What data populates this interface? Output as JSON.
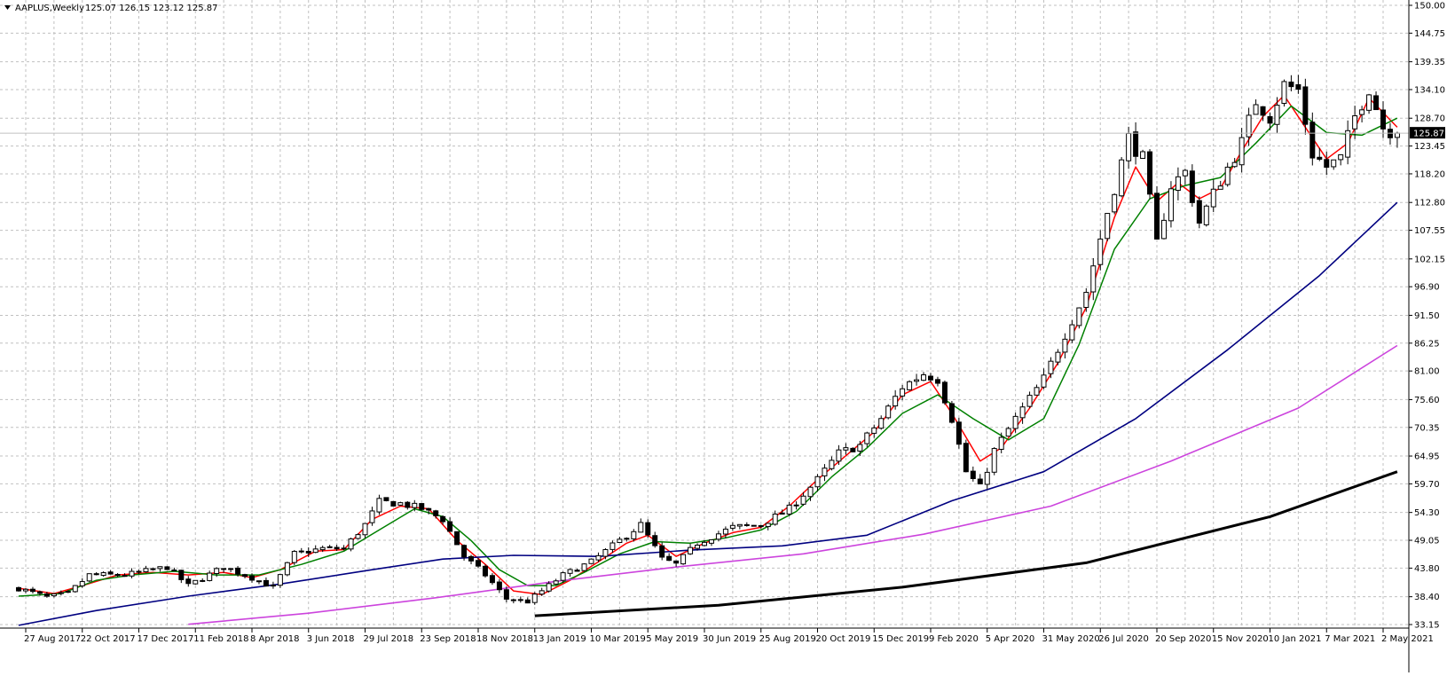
{
  "chart_data": {
    "type": "candlestick",
    "symbol": "AAPLUS,Weekly",
    "ohlc_text": "125.07 126.15 123.12 125.87",
    "last_price": 125.87,
    "last_price_label": "125.87",
    "ylim": [
      33.15,
      150.0
    ],
    "y_ticks": [
      "150.00",
      "144.75",
      "139.35",
      "134.10",
      "128.70",
      "123.45",
      "118.20",
      "112.80",
      "107.55",
      "102.15",
      "96.90",
      "91.50",
      "86.25",
      "81.00",
      "75.60",
      "70.35",
      "64.95",
      "59.70",
      "54.30",
      "49.05",
      "43.80",
      "38.40",
      "33.15"
    ],
    "x_ticks": [
      {
        "label": "27 Aug 2017",
        "date": "2017-08-27"
      },
      {
        "label": "22 Oct 2017",
        "date": "2017-10-22"
      },
      {
        "label": "17 Dec 2017",
        "date": "2017-12-17"
      },
      {
        "label": "11 Feb 2018",
        "date": "2018-02-11"
      },
      {
        "label": "8 Apr 2018",
        "date": "2018-04-08"
      },
      {
        "label": "3 Jun 2018",
        "date": "2018-06-03"
      },
      {
        "label": "29 Jul 2018",
        "date": "2018-07-29"
      },
      {
        "label": "23 Sep 2018",
        "date": "2018-09-23"
      },
      {
        "label": "18 Nov 2018",
        "date": "2018-11-18"
      },
      {
        "label": "13 Jan 2019",
        "date": "2019-01-13"
      },
      {
        "label": "10 Mar 2019",
        "date": "2019-03-10"
      },
      {
        "label": "5 May 2019",
        "date": "2019-05-05"
      },
      {
        "label": "30 Jun 2019",
        "date": "2019-06-30"
      },
      {
        "label": "25 Aug 2019",
        "date": "2019-08-25"
      },
      {
        "label": "20 Oct 2019",
        "date": "2019-10-20"
      },
      {
        "label": "15 Dec 2019",
        "date": "2019-12-15"
      },
      {
        "label": "9 Feb 2020",
        "date": "2020-02-09"
      },
      {
        "label": "5 Apr 2020",
        "date": "2020-04-05"
      },
      {
        "label": "31 May 2020",
        "date": "2020-05-31"
      },
      {
        "label": "26 Jul 2020",
        "date": "2020-07-26"
      },
      {
        "label": "20 Sep 2020",
        "date": "2020-09-20"
      },
      {
        "label": "15 Nov 2020",
        "date": "2020-11-15"
      },
      {
        "label": "10 Jan 2021",
        "date": "2021-01-10"
      },
      {
        "label": "7 Mar 2021",
        "date": "2021-03-07"
      },
      {
        "label": "2 May 2021",
        "date": "2021-05-02"
      }
    ],
    "grid": true,
    "colors": {
      "up_candle_fill": "#ffffff",
      "down_candle_fill": "#000000",
      "candle_outline": "#000000",
      "grid": "#c0c0c0",
      "last_price_line": "#c0c0c0",
      "last_price_box": "#000000"
    },
    "close_path": [
      {
        "date": "2017-08-20",
        "price": 40.0
      },
      {
        "date": "2017-09-17",
        "price": 38.3
      },
      {
        "date": "2017-10-08",
        "price": 39.0
      },
      {
        "date": "2017-10-29",
        "price": 42.5
      },
      {
        "date": "2017-12-03",
        "price": 42.5
      },
      {
        "date": "2018-01-14",
        "price": 44.0
      },
      {
        "date": "2018-02-04",
        "price": 40.5
      },
      {
        "date": "2018-03-11",
        "price": 44.0
      },
      {
        "date": "2018-04-08",
        "price": 42.0
      },
      {
        "date": "2018-04-29",
        "price": 40.2
      },
      {
        "date": "2018-05-20",
        "price": 46.5
      },
      {
        "date": "2018-06-17",
        "price": 47.5
      },
      {
        "date": "2018-07-08",
        "price": 47.5
      },
      {
        "date": "2018-07-29",
        "price": 52.0
      },
      {
        "date": "2018-08-12",
        "price": 56.3
      },
      {
        "date": "2018-09-02",
        "price": 56.0
      },
      {
        "date": "2018-09-23",
        "price": 55.0
      },
      {
        "date": "2018-10-14",
        "price": 53.0
      },
      {
        "date": "2018-11-04",
        "price": 46.0
      },
      {
        "date": "2018-11-25",
        "price": 42.5
      },
      {
        "date": "2018-12-16",
        "price": 38.0
      },
      {
        "date": "2019-01-06",
        "price": 37.5
      },
      {
        "date": "2019-01-20",
        "price": 39.5
      },
      {
        "date": "2019-02-10",
        "price": 42.5
      },
      {
        "date": "2019-03-10",
        "price": 45.0
      },
      {
        "date": "2019-04-07",
        "price": 49.0
      },
      {
        "date": "2019-04-28",
        "price": 52.0
      },
      {
        "date": "2019-05-19",
        "price": 45.5
      },
      {
        "date": "2019-06-02",
        "price": 44.5
      },
      {
        "date": "2019-06-23",
        "price": 48.5
      },
      {
        "date": "2019-07-28",
        "price": 51.5
      },
      {
        "date": "2019-08-25",
        "price": 52.0
      },
      {
        "date": "2019-09-22",
        "price": 55.0
      },
      {
        "date": "2019-10-20",
        "price": 60.5
      },
      {
        "date": "2019-11-10",
        "price": 65.5
      },
      {
        "date": "2019-12-01",
        "price": 67.0
      },
      {
        "date": "2019-12-22",
        "price": 72.0
      },
      {
        "date": "2020-01-12",
        "price": 78.0
      },
      {
        "date": "2020-02-02",
        "price": 80.5
      },
      {
        "date": "2020-02-16",
        "price": 79.5
      },
      {
        "date": "2020-03-01",
        "price": 72.0
      },
      {
        "date": "2020-03-15",
        "price": 62.0
      },
      {
        "date": "2020-03-29",
        "price": 59.0
      },
      {
        "date": "2020-04-12",
        "price": 66.0
      },
      {
        "date": "2020-05-03",
        "price": 72.0
      },
      {
        "date": "2020-05-31",
        "price": 79.5
      },
      {
        "date": "2020-06-21",
        "price": 88.0
      },
      {
        "date": "2020-07-12",
        "price": 96.0
      },
      {
        "date": "2020-08-02",
        "price": 111.0
      },
      {
        "date": "2020-08-23",
        "price": 125.0
      },
      {
        "date": "2020-09-06",
        "price": 121.0
      },
      {
        "date": "2020-09-20",
        "price": 105.0
      },
      {
        "date": "2020-10-04",
        "price": 116.0
      },
      {
        "date": "2020-10-18",
        "price": 118.5
      },
      {
        "date": "2020-11-01",
        "price": 109.0
      },
      {
        "date": "2020-11-22",
        "price": 117.0
      },
      {
        "date": "2020-12-13",
        "price": 124.0
      },
      {
        "date": "2020-12-27",
        "price": 132.0
      },
      {
        "date": "2021-01-10",
        "price": 129.0
      },
      {
        "date": "2021-01-24",
        "price": 135.0
      },
      {
        "date": "2021-02-07",
        "price": 134.0
      },
      {
        "date": "2021-02-21",
        "price": 122.0
      },
      {
        "date": "2021-03-07",
        "price": 119.5
      },
      {
        "date": "2021-03-21",
        "price": 121.0
      },
      {
        "date": "2021-04-04",
        "price": 129.0
      },
      {
        "date": "2021-04-18",
        "price": 134.5
      },
      {
        "date": "2021-05-02",
        "price": 127.0
      },
      {
        "date": "2021-05-16",
        "price": 125.87
      }
    ],
    "moving_averages": [
      {
        "color": "#ff0000",
        "width": 1.5,
        "points": [
          {
            "date": "2017-08-20",
            "price": 40.0
          },
          {
            "date": "2017-09-24",
            "price": 39.0
          },
          {
            "date": "2017-10-22",
            "price": 40.5
          },
          {
            "date": "2017-11-26",
            "price": 42.5
          },
          {
            "date": "2017-12-31",
            "price": 43.0
          },
          {
            "date": "2018-02-04",
            "price": 42.5
          },
          {
            "date": "2018-03-11",
            "price": 43.0
          },
          {
            "date": "2018-04-08",
            "price": 42.0
          },
          {
            "date": "2018-05-06",
            "price": 43.5
          },
          {
            "date": "2018-06-10",
            "price": 47.0
          },
          {
            "date": "2018-07-08",
            "price": 47.3
          },
          {
            "date": "2018-08-05",
            "price": 53.0
          },
          {
            "date": "2018-09-02",
            "price": 55.5
          },
          {
            "date": "2018-09-30",
            "price": 55.0
          },
          {
            "date": "2018-10-28",
            "price": 49.0
          },
          {
            "date": "2018-11-25",
            "price": 44.5
          },
          {
            "date": "2018-12-23",
            "price": 39.5
          },
          {
            "date": "2019-01-20",
            "price": 38.8
          },
          {
            "date": "2019-02-17",
            "price": 41.5
          },
          {
            "date": "2019-03-17",
            "price": 45.0
          },
          {
            "date": "2019-04-14",
            "price": 48.5
          },
          {
            "date": "2019-05-05",
            "price": 50.0
          },
          {
            "date": "2019-06-02",
            "price": 46.0
          },
          {
            "date": "2019-06-30",
            "price": 48.5
          },
          {
            "date": "2019-07-28",
            "price": 50.5
          },
          {
            "date": "2019-08-25",
            "price": 51.5
          },
          {
            "date": "2019-09-22",
            "price": 55.5
          },
          {
            "date": "2019-10-20",
            "price": 60.5
          },
          {
            "date": "2019-11-17",
            "price": 65.0
          },
          {
            "date": "2019-12-15",
            "price": 69.5
          },
          {
            "date": "2020-01-12",
            "price": 76.5
          },
          {
            "date": "2020-02-09",
            "price": 79.0
          },
          {
            "date": "2020-03-01",
            "price": 73.0
          },
          {
            "date": "2020-03-29",
            "price": 64.0
          },
          {
            "date": "2020-04-19",
            "price": 66.5
          },
          {
            "date": "2020-05-17",
            "price": 74.0
          },
          {
            "date": "2020-06-14",
            "price": 82.5
          },
          {
            "date": "2020-07-12",
            "price": 93.0
          },
          {
            "date": "2020-08-09",
            "price": 110.0
          },
          {
            "date": "2020-08-30",
            "price": 119.5
          },
          {
            "date": "2020-09-20",
            "price": 113.0
          },
          {
            "date": "2020-10-11",
            "price": 116.5
          },
          {
            "date": "2020-11-01",
            "price": 113.5
          },
          {
            "date": "2020-11-22",
            "price": 115.5
          },
          {
            "date": "2020-12-13",
            "price": 122.5
          },
          {
            "date": "2021-01-03",
            "price": 129.0
          },
          {
            "date": "2021-01-24",
            "price": 133.0
          },
          {
            "date": "2021-02-14",
            "price": 127.0
          },
          {
            "date": "2021-03-07",
            "price": 121.0
          },
          {
            "date": "2021-03-28",
            "price": 124.0
          },
          {
            "date": "2021-04-18",
            "price": 132.5
          },
          {
            "date": "2021-05-16",
            "price": 127.0
          }
        ]
      },
      {
        "color": "#008000",
        "width": 1.5,
        "points": [
          {
            "date": "2017-08-20",
            "price": 38.5
          },
          {
            "date": "2017-10-01",
            "price": 39.0
          },
          {
            "date": "2017-11-05",
            "price": 41.5
          },
          {
            "date": "2017-12-10",
            "price": 42.5
          },
          {
            "date": "2018-01-21",
            "price": 43.2
          },
          {
            "date": "2018-03-04",
            "price": 42.5
          },
          {
            "date": "2018-04-15",
            "price": 42.5
          },
          {
            "date": "2018-05-27",
            "price": 44.5
          },
          {
            "date": "2018-07-08",
            "price": 47.0
          },
          {
            "date": "2018-08-12",
            "price": 51.0
          },
          {
            "date": "2018-09-16",
            "price": 55.0
          },
          {
            "date": "2018-10-14",
            "price": 53.5
          },
          {
            "date": "2018-11-11",
            "price": 49.0
          },
          {
            "date": "2018-12-09",
            "price": 43.5
          },
          {
            "date": "2019-01-06",
            "price": 40.5
          },
          {
            "date": "2019-02-03",
            "price": 40.5
          },
          {
            "date": "2019-03-03",
            "price": 43.0
          },
          {
            "date": "2019-04-07",
            "price": 46.5
          },
          {
            "date": "2019-05-12",
            "price": 48.8
          },
          {
            "date": "2019-06-16",
            "price": 48.5
          },
          {
            "date": "2019-07-21",
            "price": 49.5
          },
          {
            "date": "2019-08-25",
            "price": 51.0
          },
          {
            "date": "2019-09-29",
            "price": 54.5
          },
          {
            "date": "2019-11-03",
            "price": 61.0
          },
          {
            "date": "2019-12-08",
            "price": 66.5
          },
          {
            "date": "2020-01-12",
            "price": 73.0
          },
          {
            "date": "2020-02-16",
            "price": 76.5
          },
          {
            "date": "2020-03-22",
            "price": 72.0
          },
          {
            "date": "2020-04-26",
            "price": 68.0
          },
          {
            "date": "2020-05-31",
            "price": 72.0
          },
          {
            "date": "2020-07-05",
            "price": 86.0
          },
          {
            "date": "2020-08-09",
            "price": 104.0
          },
          {
            "date": "2020-09-13",
            "price": 113.5
          },
          {
            "date": "2020-10-18",
            "price": 116.0
          },
          {
            "date": "2020-11-22",
            "price": 117.5
          },
          {
            "date": "2020-12-27",
            "price": 124.0
          },
          {
            "date": "2021-01-31",
            "price": 131.0
          },
          {
            "date": "2021-03-07",
            "price": 126.0
          },
          {
            "date": "2021-04-11",
            "price": 125.5
          },
          {
            "date": "2021-05-16",
            "price": 128.7
          }
        ]
      },
      {
        "color": "#000080",
        "width": 1.6,
        "points": [
          {
            "date": "2017-08-20",
            "price": 33.0
          },
          {
            "date": "2017-11-05",
            "price": 35.8
          },
          {
            "date": "2018-02-04",
            "price": 38.5
          },
          {
            "date": "2018-05-06",
            "price": 40.8
          },
          {
            "date": "2018-08-05",
            "price": 43.5
          },
          {
            "date": "2018-10-14",
            "price": 45.5
          },
          {
            "date": "2018-12-23",
            "price": 46.2
          },
          {
            "date": "2019-03-17",
            "price": 46.0
          },
          {
            "date": "2019-06-16",
            "price": 47.2
          },
          {
            "date": "2019-09-15",
            "price": 48.0
          },
          {
            "date": "2019-12-08",
            "price": 50.0
          },
          {
            "date": "2020-03-01",
            "price": 56.5
          },
          {
            "date": "2020-05-31",
            "price": 62.0
          },
          {
            "date": "2020-08-30",
            "price": 72.0
          },
          {
            "date": "2020-11-29",
            "price": 85.0
          },
          {
            "date": "2021-02-28",
            "price": 99.0
          },
          {
            "date": "2021-05-16",
            "price": 112.8
          }
        ]
      },
      {
        "color": "#cc44dd",
        "width": 1.6,
        "points": [
          {
            "date": "2018-02-04",
            "price": 33.2
          },
          {
            "date": "2018-06-03",
            "price": 35.3
          },
          {
            "date": "2018-10-07",
            "price": 38.2
          },
          {
            "date": "2019-02-03",
            "price": 41.3
          },
          {
            "date": "2019-06-02",
            "price": 44.0
          },
          {
            "date": "2019-10-06",
            "price": 46.5
          },
          {
            "date": "2020-02-02",
            "price": 50.2
          },
          {
            "date": "2020-06-07",
            "price": 55.5
          },
          {
            "date": "2020-10-04",
            "price": 64.0
          },
          {
            "date": "2021-02-07",
            "price": 74.0
          },
          {
            "date": "2021-05-16",
            "price": 85.8
          }
        ]
      },
      {
        "color": "#000000",
        "width": 3,
        "points": [
          {
            "date": "2019-01-13",
            "price": 34.8
          },
          {
            "date": "2019-07-14",
            "price": 36.8
          },
          {
            "date": "2020-01-12",
            "price": 40.2
          },
          {
            "date": "2020-07-12",
            "price": 44.8
          },
          {
            "date": "2021-01-10",
            "price": 53.5
          },
          {
            "date": "2021-05-16",
            "price": 62.0
          }
        ]
      }
    ]
  }
}
